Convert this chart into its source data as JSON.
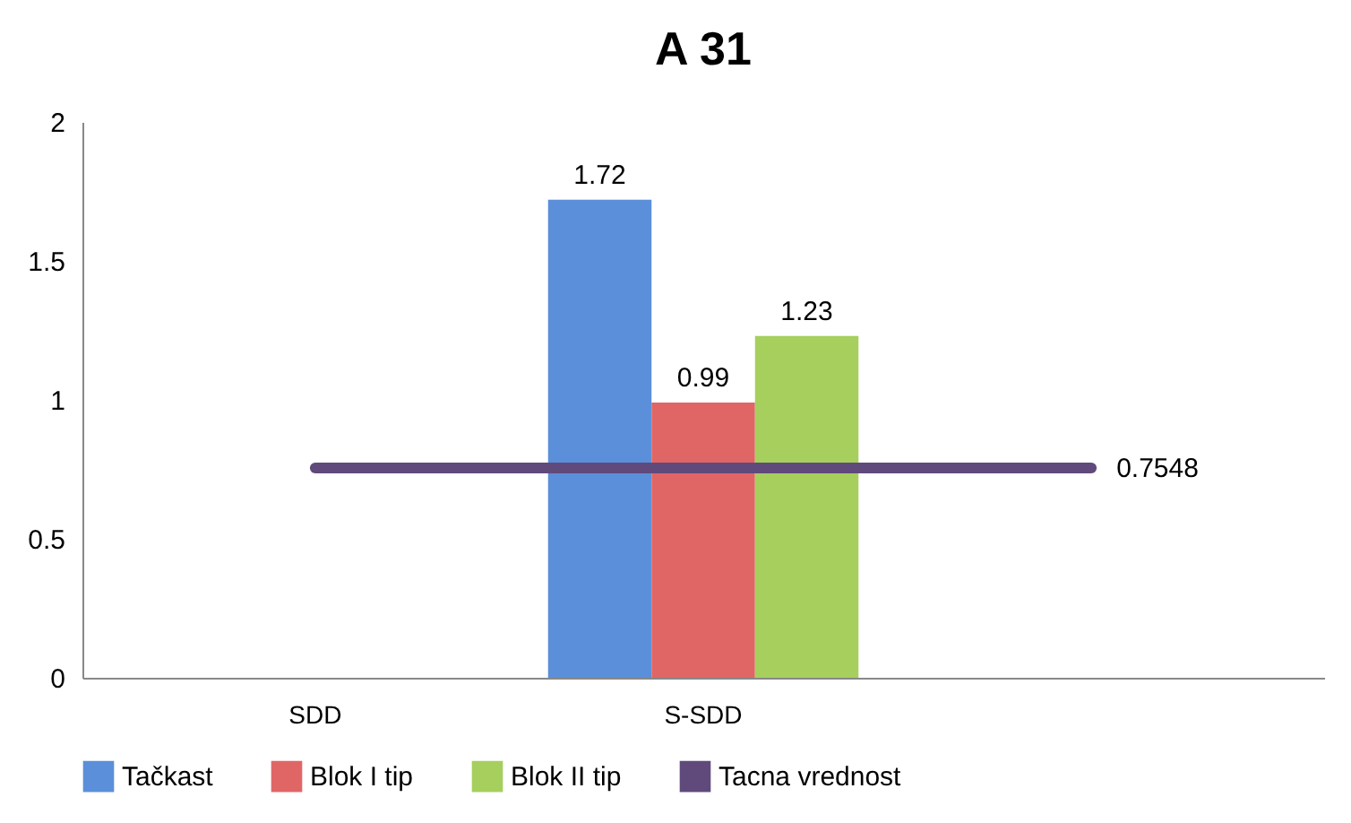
{
  "chart_data": {
    "type": "bar",
    "title": "A 31",
    "categories": [
      "SDD",
      "S-SDD",
      null
    ],
    "series": [
      {
        "name": "Tačkast",
        "color": "#5b8fd9",
        "values": [
          null,
          1.72,
          null
        ],
        "value_labels": [
          null,
          "1.72",
          null
        ]
      },
      {
        "name": "Blok I tip",
        "color": "#e06666",
        "values": [
          null,
          0.99,
          null
        ],
        "value_labels": [
          null,
          "0.99",
          null
        ]
      },
      {
        "name": "Blok II tip",
        "color": "#a6cf5e",
        "values": [
          null,
          1.23,
          null
        ],
        "value_labels": [
          null,
          "1.23",
          null
        ]
      },
      {
        "name": "Tacna vrednost",
        "type": "line",
        "color": "#604a7b",
        "values": [
          0.7548,
          0.7548,
          0.7548
        ],
        "value_labels": [
          null,
          null,
          "0.7548"
        ]
      }
    ],
    "ylim": [
      0,
      2
    ],
    "yticks": [
      0,
      0.5,
      1,
      1.5,
      2
    ],
    "grid": false,
    "legend": "bottom"
  }
}
